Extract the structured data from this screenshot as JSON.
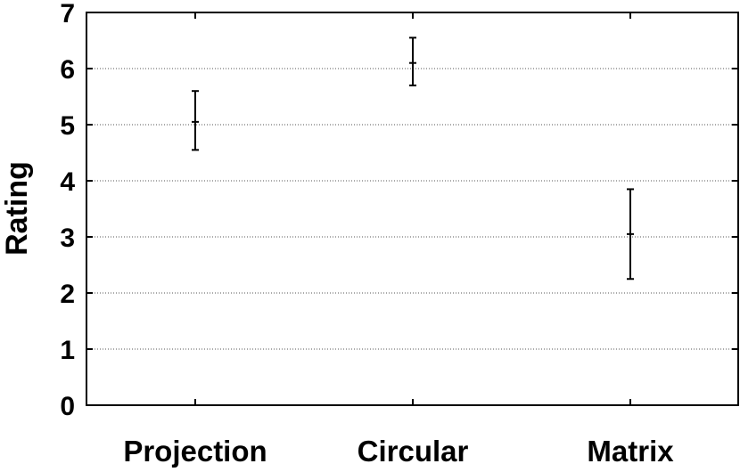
{
  "chart_data": {
    "type": "scatter",
    "title": "",
    "xlabel": "",
    "ylabel": "Rating",
    "categories": [
      "Projection",
      "Circular",
      "Matrix"
    ],
    "series": [
      {
        "values": [
          5.05,
          6.1,
          3.05
        ],
        "error_low": [
          4.55,
          5.7,
          2.25
        ],
        "error_high": [
          5.6,
          6.55,
          3.85
        ]
      }
    ],
    "ylim": [
      0,
      7
    ],
    "yticks": [
      0,
      1,
      2,
      3,
      4,
      5,
      6,
      7
    ],
    "grid": "horizontal dotted",
    "legend": "none"
  }
}
